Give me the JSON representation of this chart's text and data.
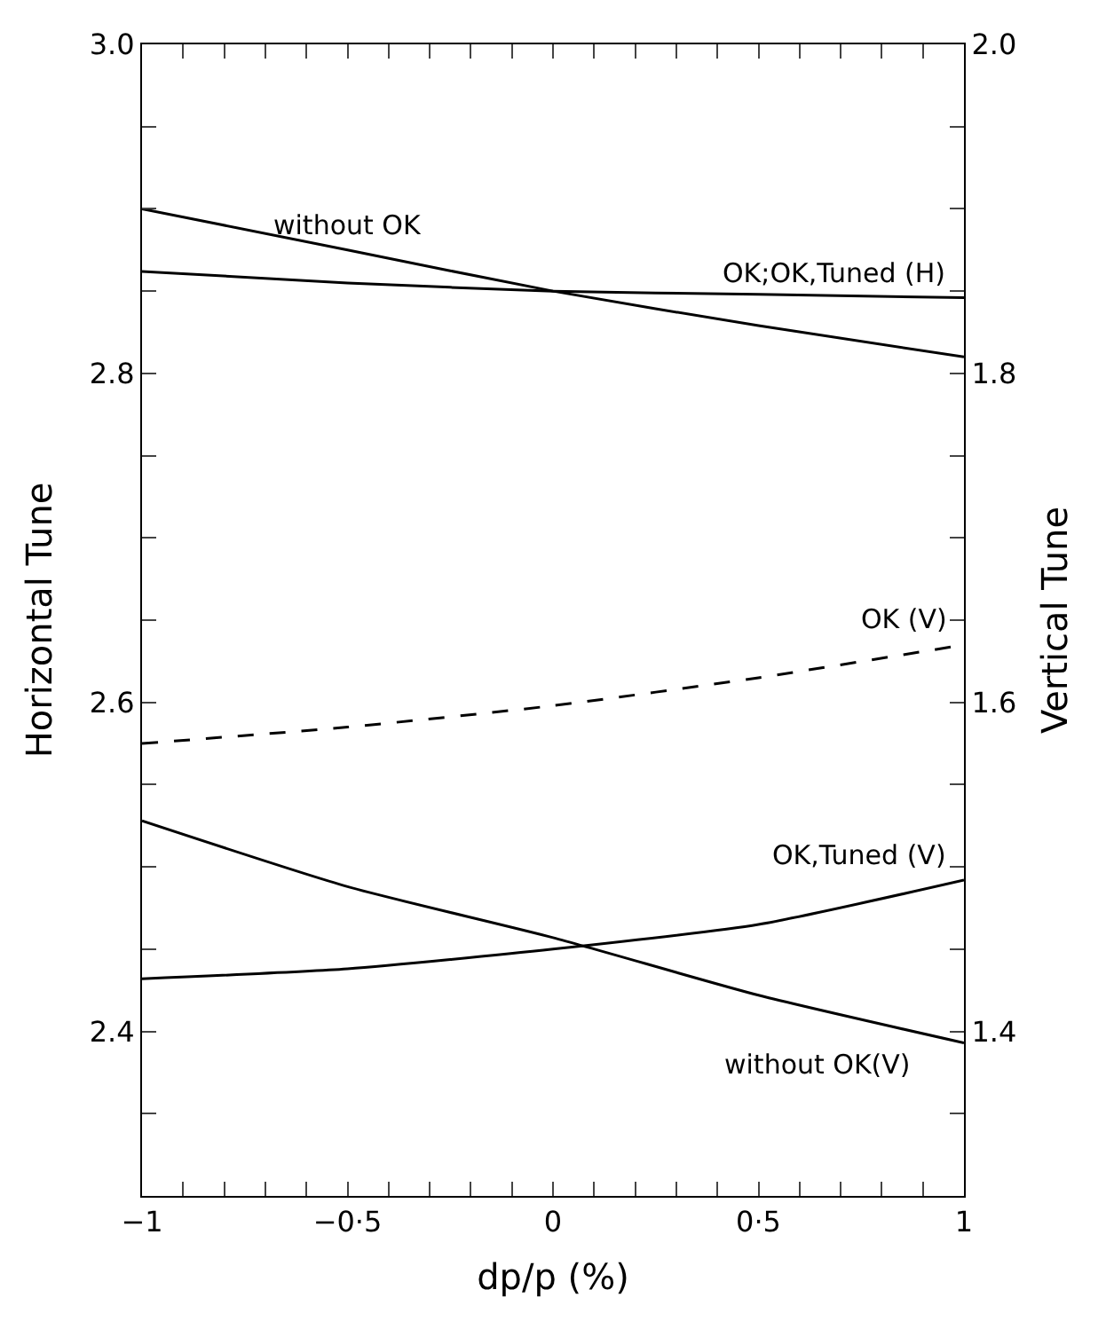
{
  "chart_data": {
    "type": "line",
    "xlabel": "dp/p (%)",
    "ylabel": "Horizontal Tune",
    "y2label": "Vertical Tune",
    "x": [
      -1,
      -0.5,
      0,
      0.5,
      1
    ],
    "xlim": [
      -1,
      1
    ],
    "xticks": [
      {
        "value": -1,
        "label": "−1"
      },
      {
        "value": -0.9,
        "label": null
      },
      {
        "value": -0.8,
        "label": null
      },
      {
        "value": -0.7,
        "label": null
      },
      {
        "value": -0.6,
        "label": null
      },
      {
        "value": -0.5,
        "label": "−0·5"
      },
      {
        "value": -0.4,
        "label": null
      },
      {
        "value": -0.3,
        "label": null
      },
      {
        "value": -0.2,
        "label": null
      },
      {
        "value": -0.1,
        "label": null
      },
      0,
      {
        "value": 0.1,
        "label": null
      },
      {
        "value": 0.2,
        "label": null
      },
      {
        "value": 0.3,
        "label": null
      },
      {
        "value": 0.4,
        "label": null
      },
      {
        "value": 0.5,
        "label": "0·5"
      },
      {
        "value": 0.6,
        "label": null
      },
      {
        "value": 0.7,
        "label": null
      },
      {
        "value": 0.8,
        "label": null
      },
      {
        "value": 0.9,
        "label": null
      },
      1
    ],
    "ylim": [
      2.3,
      3.0
    ],
    "yticks": [
      {
        "value": 2.35,
        "label": null
      },
      2.4,
      {
        "value": 2.45,
        "label": null
      },
      {
        "value": 2.5,
        "label": null
      },
      {
        "value": 2.55,
        "label": null
      },
      2.6,
      {
        "value": 2.65,
        "label": null
      },
      {
        "value": 2.7,
        "label": null
      },
      {
        "value": 2.75,
        "label": null
      },
      2.8,
      {
        "value": 2.85,
        "label": null
      },
      {
        "value": 2.9,
        "label": null
      },
      {
        "value": 2.95,
        "label": null
      },
      {
        "value": 3.0,
        "label": "3.0"
      }
    ],
    "y2lim": [
      1.3,
      2.0
    ],
    "y2ticks": [
      {
        "value": 1.35,
        "label": null
      },
      1.4,
      {
        "value": 1.45,
        "label": null
      },
      {
        "value": 1.5,
        "label": null
      },
      {
        "value": 1.55,
        "label": null
      },
      1.6,
      {
        "value": 1.65,
        "label": null
      },
      {
        "value": 1.7,
        "label": null
      },
      {
        "value": 1.75,
        "label": null
      },
      1.8,
      {
        "value": 1.85,
        "label": null
      },
      {
        "value": 1.9,
        "label": null
      },
      {
        "value": 1.95,
        "label": null
      },
      {
        "value": 2.0,
        "label": "2.0"
      }
    ],
    "legend": false,
    "marker": "none",
    "series": [
      {
        "name": "without OK",
        "color": "#000000",
        "line_style": "solid",
        "values": [
          2.9,
          2.875,
          2.85,
          2.829,
          2.81
        ]
      },
      {
        "name": "OK;OK,Tuned (H)",
        "color": "#000000",
        "line_style": "solid",
        "values": [
          2.862,
          2.855,
          2.85,
          2.848,
          2.846
        ]
      },
      {
        "name": "OK (V)",
        "color": "#000000",
        "line_style": "dashed",
        "axis": "y2",
        "values": [
          1.575,
          1.585,
          1.598,
          1.615,
          1.635
        ]
      },
      {
        "name": "OK,Tuned (V)",
        "color": "#000000",
        "line_style": "solid",
        "axis": "y2",
        "values": [
          1.432,
          1.438,
          1.45,
          1.465,
          1.492
        ]
      },
      {
        "name": "without OK(V)",
        "color": "#000000",
        "line_style": "solid",
        "axis": "y2",
        "values": [
          1.528,
          1.488,
          1.457,
          1.422,
          1.393
        ]
      }
    ]
  }
}
